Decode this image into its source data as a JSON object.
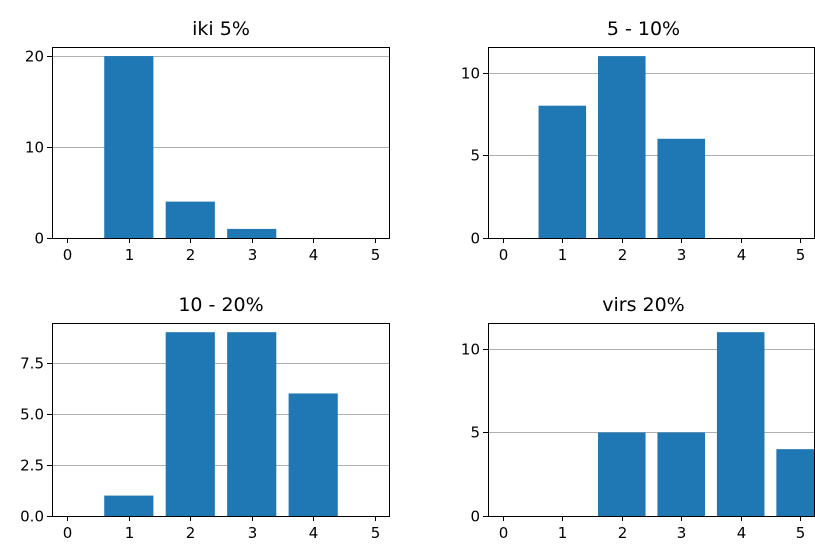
{
  "chart_data": [
    {
      "type": "bar",
      "title": "iki 5%",
      "x": [
        1,
        2,
        3,
        4
      ],
      "values": [
        20,
        4,
        1,
        0
      ],
      "xlim": [
        -0.25,
        5.25
      ],
      "ylim": [
        0,
        21
      ],
      "xticks": [
        0,
        1,
        2,
        3,
        4,
        5
      ],
      "yticks": [
        0,
        10,
        20
      ],
      "ytick_labels": [
        "0",
        "10",
        "20"
      ],
      "grid": "y",
      "color": "#1f77b4"
    },
    {
      "type": "bar",
      "title": "5 - 10%",
      "x": [
        1,
        2,
        3,
        4
      ],
      "values": [
        8,
        11,
        6,
        0
      ],
      "xlim": [
        -0.25,
        5.25
      ],
      "ylim": [
        0,
        11.55
      ],
      "xticks": [
        0,
        1,
        2,
        3,
        4,
        5
      ],
      "yticks": [
        0,
        5,
        10
      ],
      "ytick_labels": [
        "0",
        "5",
        "10"
      ],
      "grid": "y",
      "color": "#1f77b4"
    },
    {
      "type": "bar",
      "title": "10 - 20%",
      "x": [
        1,
        2,
        3,
        4
      ],
      "values": [
        1,
        9,
        9,
        6
      ],
      "xlim": [
        -0.25,
        5.25
      ],
      "ylim": [
        0,
        9.45
      ],
      "xticks": [
        0,
        1,
        2,
        3,
        4,
        5
      ],
      "yticks": [
        0,
        2.5,
        5,
        7.5
      ],
      "ytick_labels": [
        "0.0",
        "2.5",
        "5.0",
        "7.5"
      ],
      "grid": "y",
      "color": "#1f77b4"
    },
    {
      "type": "bar",
      "title": "virs 20%",
      "x": [
        1,
        2,
        3,
        4,
        5
      ],
      "values": [
        0,
        5,
        5,
        11,
        4
      ],
      "xlim": [
        -0.25,
        5.25
      ],
      "ylim": [
        0,
        11.55
      ],
      "xticks": [
        0,
        1,
        2,
        3,
        4,
        5
      ],
      "yticks": [
        0,
        5,
        10
      ],
      "ytick_labels": [
        "0",
        "5",
        "10"
      ],
      "grid": "y",
      "color": "#1f77b4"
    }
  ]
}
